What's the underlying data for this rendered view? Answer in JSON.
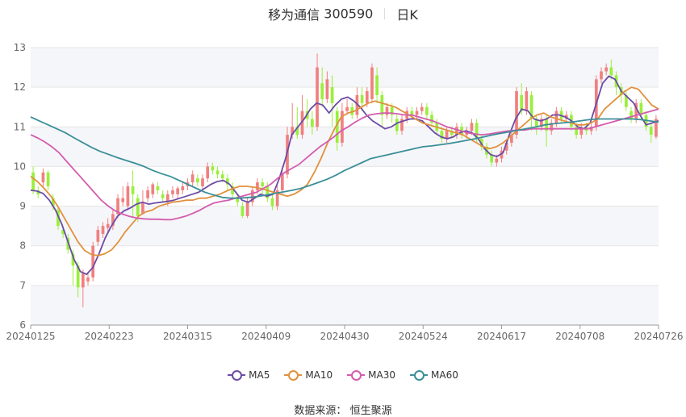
{
  "header": {
    "stock_name": "移为通信",
    "stock_code": "300590",
    "period": "日K"
  },
  "source": {
    "label": "数据来源：",
    "provider": "恒生聚源"
  },
  "colors": {
    "up": "#f08080",
    "down": "#9aef3c",
    "MA5": "#6c4ba6",
    "MA10": "#e1913d",
    "MA30": "#d45cae",
    "MA60": "#3b8f98",
    "grid": "#e6e6e6",
    "band": "#f5f6f9"
  },
  "chart_data": {
    "type": "candlestick",
    "x_ticks": [
      "20240125",
      "20240223",
      "20240315",
      "20240409",
      "20240430",
      "20240524",
      "20240617",
      "20240708",
      "20240726"
    ],
    "y_ticks": [
      6,
      7,
      8,
      9,
      10,
      11,
      12,
      13
    ],
    "ylim": [
      6,
      13
    ],
    "grid": true,
    "legend_position": "bottom",
    "candles": [
      [
        9.85,
        9.4,
        10.0,
        9.3
      ],
      [
        9.4,
        9.3,
        9.5,
        9.2
      ],
      [
        9.6,
        9.85,
        9.95,
        9.5
      ],
      [
        9.85,
        9.5,
        9.9,
        9.4
      ],
      [
        9.2,
        9.0,
        9.3,
        8.9
      ],
      [
        8.9,
        8.5,
        9.0,
        8.4
      ],
      [
        8.4,
        8.3,
        8.5,
        8.2
      ],
      [
        8.2,
        7.9,
        8.3,
        7.8
      ],
      [
        7.8,
        7.5,
        7.9,
        7.0
      ],
      [
        7.5,
        6.95,
        7.6,
        6.7
      ],
      [
        6.95,
        7.3,
        7.4,
        6.45
      ],
      [
        7.1,
        7.2,
        7.3,
        7.0
      ],
      [
        7.2,
        8.0,
        8.1,
        7.1
      ],
      [
        8.1,
        8.4,
        8.5,
        8.0
      ],
      [
        8.3,
        8.5,
        8.6,
        8.2
      ],
      [
        8.45,
        8.55,
        8.7,
        8.3
      ],
      [
        8.5,
        8.8,
        8.9,
        8.4
      ],
      [
        8.8,
        9.2,
        9.3,
        8.7
      ],
      [
        9.1,
        9.2,
        9.5,
        9.0
      ],
      [
        9.0,
        9.5,
        9.6,
        8.9
      ],
      [
        9.5,
        9.3,
        9.9,
        8.7
      ],
      [
        9.2,
        8.75,
        9.3,
        8.6
      ],
      [
        8.8,
        9.1,
        9.4,
        8.8
      ],
      [
        9.2,
        9.4,
        9.5,
        9.1
      ],
      [
        9.3,
        9.55,
        9.6,
        9.2
      ],
      [
        9.5,
        9.4,
        9.6,
        9.3
      ],
      [
        9.3,
        9.2,
        9.4,
        9.1
      ],
      [
        9.1,
        9.3,
        9.4,
        9.0
      ],
      [
        9.3,
        9.4,
        9.5,
        9.2
      ],
      [
        9.3,
        9.45,
        9.5,
        9.2
      ],
      [
        9.4,
        9.5,
        9.6,
        9.3
      ],
      [
        9.5,
        9.6,
        9.7,
        9.4
      ],
      [
        9.6,
        9.8,
        9.9,
        9.5
      ],
      [
        9.7,
        9.6,
        9.8,
        9.5
      ],
      [
        9.5,
        9.7,
        9.8,
        9.4
      ],
      [
        9.7,
        10.0,
        10.1,
        9.6
      ],
      [
        10.0,
        9.9,
        10.1,
        9.8
      ],
      [
        9.9,
        9.8,
        10.0,
        9.7
      ],
      [
        9.8,
        9.7,
        9.9,
        9.6
      ],
      [
        9.7,
        9.55,
        9.8,
        9.4
      ],
      [
        9.5,
        9.3,
        9.6,
        9.2
      ],
      [
        9.2,
        9.1,
        9.3,
        9.0
      ],
      [
        9.0,
        8.75,
        9.1,
        8.7
      ],
      [
        8.75,
        9.1,
        9.2,
        8.7
      ],
      [
        9.1,
        9.4,
        9.5,
        9.0
      ],
      [
        9.4,
        9.6,
        9.7,
        9.3
      ],
      [
        9.6,
        9.5,
        9.7,
        9.3
      ],
      [
        9.5,
        9.2,
        9.6,
        9.1
      ],
      [
        9.2,
        9.0,
        9.3,
        8.9
      ],
      [
        9.0,
        9.4,
        9.6,
        8.9
      ],
      [
        9.4,
        9.8,
        10.0,
        9.3
      ],
      [
        9.8,
        10.8,
        11.0,
        9.7
      ],
      [
        10.8,
        11.0,
        11.6,
        10.7
      ],
      [
        11.0,
        10.8,
        11.5,
        10.7
      ],
      [
        10.8,
        11.4,
        11.8,
        10.7
      ],
      [
        11.4,
        11.2,
        11.7,
        11.0
      ],
      [
        11.2,
        11.0,
        11.4,
        10.8
      ],
      [
        11.0,
        12.5,
        12.85,
        10.9
      ],
      [
        12.1,
        11.7,
        12.5,
        11.5
      ],
      [
        11.7,
        12.2,
        12.4,
        11.6
      ],
      [
        12.0,
        11.6,
        12.3,
        11.0
      ],
      [
        11.4,
        10.6,
        11.5,
        10.4
      ],
      [
        10.6,
        11.4,
        11.6,
        10.5
      ],
      [
        11.4,
        11.5,
        11.7,
        11.3
      ],
      [
        11.5,
        11.3,
        11.6,
        11.2
      ],
      [
        11.3,
        11.8,
        12.0,
        11.2
      ],
      [
        11.8,
        11.6,
        12.0,
        11.4
      ],
      [
        11.6,
        11.9,
        12.0,
        11.5
      ],
      [
        11.7,
        12.5,
        12.6,
        11.6
      ],
      [
        12.3,
        11.8,
        12.5,
        11.6
      ],
      [
        11.8,
        11.3,
        11.9,
        11.0
      ],
      [
        11.3,
        11.5,
        11.6,
        11.2
      ],
      [
        11.5,
        11.3,
        11.6,
        11.1
      ],
      [
        11.2,
        10.9,
        11.3,
        10.8
      ],
      [
        10.9,
        11.2,
        11.3,
        10.8
      ],
      [
        11.2,
        11.4,
        11.5,
        11.1
      ],
      [
        11.4,
        11.3,
        11.5,
        11.2
      ],
      [
        11.3,
        11.4,
        11.5,
        11.2
      ],
      [
        11.4,
        11.5,
        11.6,
        11.3
      ],
      [
        11.5,
        11.3,
        11.6,
        11.2
      ],
      [
        11.3,
        11.1,
        11.4,
        11.0
      ],
      [
        11.1,
        10.9,
        11.2,
        10.8
      ],
      [
        10.9,
        10.7,
        11.0,
        10.6
      ],
      [
        10.7,
        10.9,
        11.0,
        10.6
      ],
      [
        10.9,
        10.8,
        11.0,
        10.7
      ],
      [
        10.8,
        11.0,
        11.1,
        10.7
      ],
      [
        11.0,
        10.8,
        11.1,
        10.7
      ],
      [
        10.8,
        10.9,
        11.0,
        10.7
      ],
      [
        10.9,
        11.1,
        11.2,
        10.8
      ],
      [
        11.1,
        10.7,
        11.2,
        10.6
      ],
      [
        10.7,
        10.5,
        10.8,
        10.4
      ],
      [
        10.5,
        10.3,
        10.6,
        10.2
      ],
      [
        10.3,
        10.1,
        10.4,
        10.0
      ],
      [
        10.1,
        10.2,
        10.3,
        10.0
      ],
      [
        10.2,
        10.4,
        10.5,
        10.1
      ],
      [
        10.4,
        10.6,
        10.7,
        10.3
      ],
      [
        10.6,
        10.8,
        10.9,
        10.5
      ],
      [
        10.8,
        11.9,
        12.0,
        10.7
      ],
      [
        11.8,
        11.4,
        12.1,
        11.3
      ],
      [
        11.4,
        11.9,
        12.0,
        11.3
      ],
      [
        11.8,
        11.2,
        11.9,
        10.9
      ],
      [
        11.2,
        11.0,
        11.3,
        10.8
      ],
      [
        11.0,
        11.2,
        11.3,
        10.9
      ],
      [
        11.2,
        10.9,
        11.3,
        10.5
      ],
      [
        10.9,
        11.1,
        11.2,
        10.8
      ],
      [
        11.1,
        11.4,
        11.5,
        11.0
      ],
      [
        11.4,
        11.2,
        11.5,
        11.1
      ],
      [
        11.2,
        11.3,
        11.4,
        11.1
      ],
      [
        11.3,
        11.0,
        11.4,
        10.9
      ],
      [
        11.0,
        10.8,
        11.1,
        10.7
      ],
      [
        10.8,
        11.0,
        11.1,
        10.7
      ],
      [
        11.0,
        10.9,
        11.1,
        10.8
      ],
      [
        10.9,
        11.0,
        11.1,
        10.8
      ],
      [
        11.0,
        12.2,
        12.3,
        10.9
      ],
      [
        12.2,
        12.4,
        12.5,
        12.1
      ],
      [
        12.4,
        12.5,
        12.6,
        12.3
      ],
      [
        12.5,
        12.3,
        12.7,
        12.2
      ],
      [
        12.3,
        12.0,
        12.4,
        11.8
      ],
      [
        12.0,
        11.8,
        12.1,
        11.6
      ],
      [
        11.8,
        11.5,
        11.9,
        11.4
      ],
      [
        11.4,
        11.2,
        11.5,
        11.1
      ],
      [
        11.2,
        11.6,
        11.7,
        11.1
      ],
      [
        11.6,
        11.3,
        11.7,
        11.2
      ],
      [
        11.3,
        11.0,
        11.4,
        10.9
      ],
      [
        11.0,
        10.8,
        11.1,
        10.6
      ],
      [
        10.75,
        11.2,
        11.3,
        10.7
      ]
    ],
    "series": [
      {
        "name": "MA5",
        "values": [
          9.4,
          9.38,
          9.32,
          9.15,
          8.9,
          8.55,
          8.1,
          7.65,
          7.35,
          7.28,
          7.45,
          7.8,
          8.2,
          8.5,
          8.75,
          8.88,
          8.95,
          9.05,
          9.1,
          9.05,
          9.08,
          9.1,
          9.12,
          9.15,
          9.2,
          9.25,
          9.3,
          9.35,
          9.45,
          9.55,
          9.62,
          9.65,
          9.55,
          9.35,
          9.15,
          9.1,
          9.2,
          9.3,
          9.25,
          9.3,
          9.7,
          10.2,
          10.8,
          11.0,
          11.2,
          11.45,
          11.6,
          11.55,
          11.35,
          11.55,
          11.7,
          11.75,
          11.65,
          11.5,
          11.3,
          11.15,
          11.05,
          10.95,
          11.0,
          11.1,
          11.15,
          11.2,
          11.2,
          11.15,
          11.0,
          10.85,
          10.75,
          10.7,
          10.75,
          10.85,
          10.9,
          10.85,
          10.7,
          10.45,
          10.3,
          10.25,
          10.35,
          10.8,
          11.2,
          11.45,
          11.4,
          11.2,
          11.15,
          11.2,
          11.3,
          11.3,
          11.25,
          11.15,
          11.0,
          10.95,
          11.1,
          11.6,
          12.1,
          12.28,
          12.2,
          11.9,
          11.75,
          11.6,
          11.3,
          11.05,
          11.1,
          11.15
        ]
      },
      {
        "name": "MA10",
        "values": [
          9.75,
          9.62,
          9.45,
          9.25,
          9.0,
          8.7,
          8.4,
          8.1,
          7.88,
          7.78,
          7.75,
          7.8,
          7.9,
          8.1,
          8.35,
          8.55,
          8.75,
          8.85,
          8.9,
          9.0,
          9.05,
          9.1,
          9.12,
          9.15,
          9.15,
          9.2,
          9.2,
          9.25,
          9.3,
          9.38,
          9.45,
          9.5,
          9.5,
          9.48,
          9.45,
          9.4,
          9.35,
          9.3,
          9.25,
          9.3,
          9.4,
          9.55,
          9.85,
          10.2,
          10.6,
          10.95,
          11.25,
          11.35,
          11.4,
          11.5,
          11.6,
          11.65,
          11.6,
          11.55,
          11.5,
          11.4,
          11.3,
          11.2,
          11.1,
          11.05,
          11.0,
          10.95,
          10.9,
          10.85,
          10.8,
          10.7,
          10.6,
          10.5,
          10.45,
          10.5,
          10.6,
          10.75,
          10.9,
          11.05,
          11.2,
          11.3,
          11.35,
          11.25,
          11.2,
          11.15,
          11.1,
          11.05,
          11.05,
          11.1,
          11.2,
          11.45,
          11.6,
          11.75,
          11.9,
          12.0,
          11.95,
          11.75,
          11.55,
          11.45
        ]
      },
      {
        "name": "MA30",
        "values": [
          10.8,
          10.72,
          10.62,
          10.5,
          10.35,
          10.15,
          9.95,
          9.75,
          9.55,
          9.35,
          9.15,
          9.0,
          8.88,
          8.8,
          8.74,
          8.7,
          8.68,
          8.67,
          8.67,
          8.66,
          8.66,
          8.7,
          8.75,
          8.82,
          8.9,
          9.0,
          9.08,
          9.12,
          9.15,
          9.2,
          9.25,
          9.3,
          9.35,
          9.45,
          9.55,
          9.7,
          9.85,
          9.95,
          10.05,
          10.2,
          10.35,
          10.5,
          10.62,
          10.75,
          10.9,
          11.0,
          11.12,
          11.22,
          11.3,
          11.33,
          11.35,
          11.35,
          11.33,
          11.3,
          11.3,
          11.25,
          11.2,
          11.15,
          11.08,
          11.0,
          10.95,
          10.9,
          10.85,
          10.82,
          10.8,
          10.82,
          10.85,
          10.88,
          10.9,
          10.92,
          10.92,
          10.95,
          10.95,
          10.95,
          10.95,
          10.95,
          10.95,
          10.95,
          10.95,
          10.95,
          11.0,
          11.05,
          11.1,
          11.15,
          11.2,
          11.25,
          11.3,
          11.35,
          11.4,
          11.45
        ]
      },
      {
        "name": "MA60",
        "values": [
          11.25,
          11.15,
          11.05,
          10.95,
          10.85,
          10.72,
          10.6,
          10.48,
          10.38,
          10.3,
          10.22,
          10.15,
          10.08,
          10.0,
          9.9,
          9.82,
          9.75,
          9.65,
          9.55,
          9.45,
          9.35,
          9.28,
          9.22,
          9.2,
          9.2,
          9.22,
          9.24,
          9.28,
          9.32,
          9.36,
          9.4,
          9.45,
          9.52,
          9.6,
          9.68,
          9.78,
          9.9,
          10.0,
          10.1,
          10.2,
          10.25,
          10.3,
          10.35,
          10.4,
          10.45,
          10.5,
          10.52,
          10.55,
          10.58,
          10.62,
          10.66,
          10.7,
          10.75,
          10.8,
          10.84,
          10.88,
          10.92,
          10.96,
          11.0,
          11.05,
          11.08,
          11.1,
          11.12,
          11.15,
          11.18,
          11.2,
          11.2,
          11.2,
          11.2,
          11.2,
          11.18,
          11.15,
          11.12
        ]
      }
    ]
  }
}
